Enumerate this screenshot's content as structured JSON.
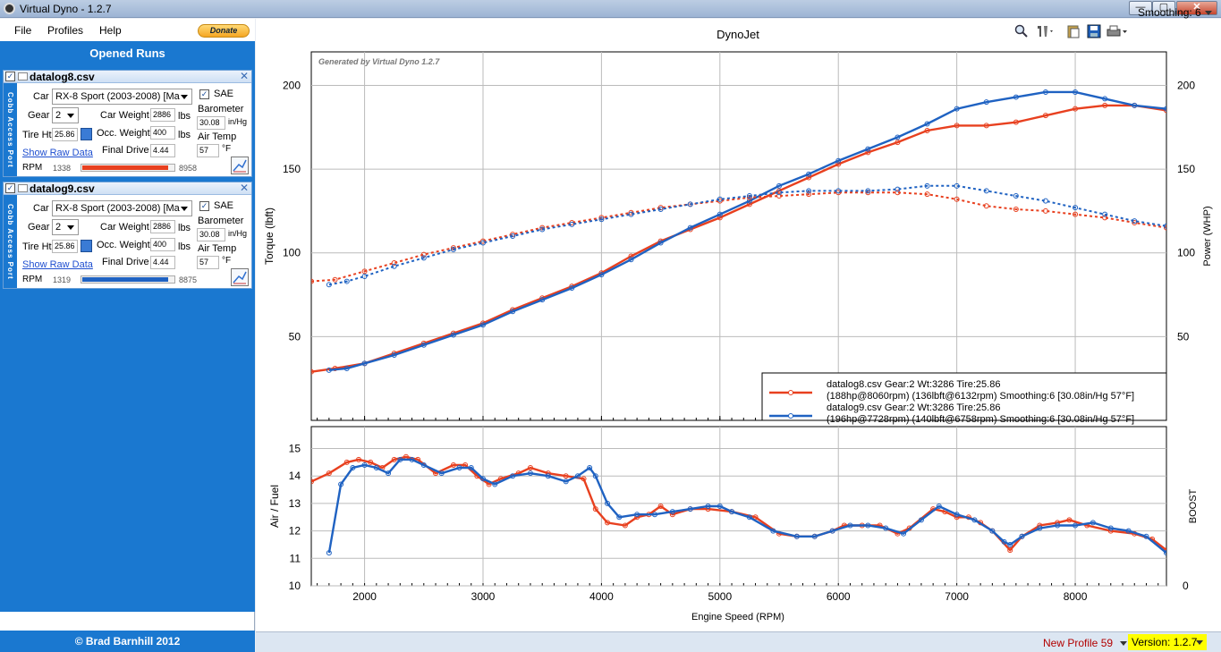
{
  "window": {
    "title": "Virtual Dyno - 1.2.7",
    "min": "—",
    "max": "▢",
    "close": "✕"
  },
  "menu": {
    "file": "File",
    "profiles": "Profiles",
    "help": "Help",
    "donate": "Donate"
  },
  "sidebar": {
    "header": "Opened Runs",
    "side_label": "Cobb Access Port",
    "runs": [
      {
        "filename": "datalog8.csv",
        "checked": true,
        "car": "RX-8 Sport (2003-2008) [Ma",
        "sae": "SAE",
        "sae_checked": true,
        "gear": "2",
        "car_weight_label": "Car Weight",
        "car_weight": "2886",
        "lbs": "lbs",
        "barometer_label": "Barometer",
        "barometer": "30.08",
        "baro_unit": "in/Hg",
        "tire_label": "Tire Ht",
        "tire": "25.86",
        "occ_weight_label": "Occ. Weight",
        "occ_weight": "400",
        "air_temp_label": "Air Temp",
        "air_temp": "57",
        "temp_unit": "°F",
        "raw_link": "Show Raw Data",
        "final_drive_label": "Final Drive",
        "final_drive": "4.44",
        "rpm_label": "RPM",
        "rpm_min": "1338",
        "rpm_max": "8958",
        "color": "#e8401f"
      },
      {
        "filename": "datalog9.csv",
        "checked": true,
        "car": "RX-8 Sport (2003-2008) [Ma",
        "sae": "SAE",
        "sae_checked": true,
        "gear": "2",
        "car_weight_label": "Car Weight",
        "car_weight": "2886",
        "lbs": "lbs",
        "barometer_label": "Barometer",
        "barometer": "30.08",
        "baro_unit": "in/Hg",
        "tire_label": "Tire Ht",
        "tire": "25.86",
        "occ_weight_label": "Occ. Weight",
        "occ_weight": "400",
        "air_temp_label": "Air Temp",
        "air_temp": "57",
        "temp_unit": "°F",
        "raw_link": "Show Raw Data",
        "final_drive_label": "Final Drive",
        "final_drive": "4.44",
        "rpm_label": "RPM",
        "rpm_min": "1319",
        "rpm_max": "8875",
        "color": "#1f62c2"
      }
    ],
    "car_label": "Car",
    "gear_label": "Gear",
    "copyright": "© Brad Barnhill 2012"
  },
  "toolbar": {
    "smoothing": "Smoothing: 6"
  },
  "status": {
    "profile": "New Profile 59",
    "version": "Version: 1.2.7"
  },
  "chart_data": [
    {
      "type": "line",
      "title": "DynoJet",
      "watermark": "Generated by Virtual Dyno 1.2.7",
      "xlabel": "Engine Speed (RPM)",
      "ylabel": "Torque (lbft)",
      "y2label": "Power (WHP)",
      "xlim": [
        1550,
        8770
      ],
      "ylim": [
        0,
        220
      ],
      "xticks": [
        2000,
        3000,
        4000,
        5000,
        6000,
        7000,
        8000
      ],
      "yticks": [
        50,
        100,
        150,
        200
      ],
      "grid": true,
      "legend_position": "bottom-right",
      "legend": [
        {
          "line1": "datalog8.csv Gear:2 Wt:3286 Tire:25.86",
          "line2": "(188hp@8060rpm) (136lbft@6132rpm) Smoothing:6 [30.08in/Hg 57°F]",
          "color": "#e8401f"
        },
        {
          "line1": "datalog9.csv Gear:2 Wt:3286 Tire:25.86",
          "line2": "(196hp@7728rpm) (140lbft@6758rpm) Smoothing:6 [30.08in/Hg 57°F]",
          "color": "#1f62c2"
        }
      ],
      "series": [
        {
          "name": "datalog8.csv power",
          "color": "#e8401f",
          "dash": false,
          "x": [
            1550,
            1750,
            2000,
            2250,
            2500,
            2750,
            3000,
            3250,
            3500,
            3750,
            4000,
            4250,
            4500,
            4750,
            5000,
            5250,
            5500,
            5750,
            6000,
            6250,
            6500,
            6750,
            7000,
            7250,
            7500,
            7750,
            8000,
            8250,
            8500,
            8770
          ],
          "y": [
            29,
            31,
            34,
            40,
            46,
            52,
            58,
            66,
            73,
            80,
            88,
            98,
            107,
            114,
            121,
            129,
            137,
            145,
            153,
            160,
            166,
            173,
            176,
            176,
            178,
            182,
            186,
            188,
            188,
            185
          ]
        },
        {
          "name": "datalog9.csv power",
          "color": "#1f62c2",
          "dash": false,
          "x": [
            1700,
            1850,
            2000,
            2250,
            2500,
            2750,
            3000,
            3250,
            3500,
            3750,
            4000,
            4250,
            4500,
            4750,
            5000,
            5250,
            5500,
            5750,
            6000,
            6250,
            6500,
            6750,
            7000,
            7250,
            7500,
            7750,
            8000,
            8250,
            8500,
            8770
          ],
          "y": [
            30,
            31,
            34,
            39,
            45,
            51,
            57,
            65,
            72,
            79,
            87,
            96,
            106,
            115,
            123,
            131,
            140,
            147,
            155,
            162,
            169,
            177,
            186,
            190,
            193,
            196,
            196,
            192,
            188,
            186
          ]
        },
        {
          "name": "datalog8.csv torque",
          "color": "#e8401f",
          "dash": true,
          "x": [
            1550,
            1750,
            2000,
            2250,
            2500,
            2750,
            3000,
            3250,
            3500,
            3750,
            4000,
            4250,
            4500,
            4750,
            5000,
            5250,
            5500,
            5750,
            6000,
            6250,
            6500,
            6750,
            7000,
            7250,
            7500,
            7750,
            8000,
            8250,
            8500,
            8770
          ],
          "y": [
            83,
            84,
            89,
            94,
            99,
            103,
            107,
            111,
            115,
            118,
            121,
            124,
            127,
            129,
            131,
            133,
            134,
            135,
            136,
            136,
            136,
            135,
            132,
            128,
            126,
            125,
            123,
            121,
            118,
            115
          ]
        },
        {
          "name": "datalog9.csv torque",
          "color": "#1f62c2",
          "dash": true,
          "x": [
            1700,
            1850,
            2000,
            2250,
            2500,
            2750,
            3000,
            3250,
            3500,
            3750,
            4000,
            4250,
            4500,
            4750,
            5000,
            5250,
            5500,
            5750,
            6000,
            6250,
            6500,
            6750,
            7000,
            7250,
            7500,
            7750,
            8000,
            8250,
            8500,
            8770
          ],
          "y": [
            81,
            83,
            86,
            92,
            97,
            102,
            106,
            110,
            114,
            117,
            120,
            123,
            126,
            129,
            132,
            134,
            136,
            137,
            137,
            137,
            138,
            140,
            140,
            137,
            134,
            131,
            127,
            123,
            119,
            116
          ]
        }
      ]
    },
    {
      "type": "line",
      "ylabel": "Air / Fuel",
      "y2label": "BOOST",
      "xlim": [
        1550,
        8770
      ],
      "ylim": [
        10,
        15.8
      ],
      "yticks": [
        10,
        11,
        12,
        13,
        14,
        15
      ],
      "y2ticks": [
        "0"
      ],
      "grid": true,
      "series": [
        {
          "name": "datalog8.csv AFR",
          "color": "#e8401f",
          "x": [
            1550,
            1700,
            1850,
            1950,
            2050,
            2150,
            2250,
            2350,
            2450,
            2600,
            2750,
            2850,
            2950,
            3050,
            3150,
            3300,
            3400,
            3550,
            3700,
            3850,
            3950,
            4050,
            4200,
            4300,
            4400,
            4500,
            4600,
            4750,
            4900,
            5100,
            5300,
            5500,
            5650,
            5800,
            5950,
            6050,
            6200,
            6350,
            6500,
            6600,
            6800,
            6900,
            7000,
            7100,
            7200,
            7300,
            7450,
            7550,
            7700,
            7850,
            7950,
            8100,
            8300,
            8500,
            8650,
            8770
          ],
          "y": [
            13.8,
            14.1,
            14.5,
            14.6,
            14.5,
            14.3,
            14.6,
            14.7,
            14.6,
            14.1,
            14.4,
            14.4,
            14.0,
            13.7,
            13.9,
            14.1,
            14.3,
            14.1,
            14.0,
            13.9,
            12.8,
            12.3,
            12.2,
            12.5,
            12.6,
            12.9,
            12.6,
            12.8,
            12.8,
            12.7,
            12.5,
            11.9,
            11.8,
            11.8,
            12.0,
            12.2,
            12.2,
            12.2,
            11.9,
            12.1,
            12.8,
            12.7,
            12.5,
            12.5,
            12.3,
            12.0,
            11.3,
            11.8,
            12.2,
            12.3,
            12.4,
            12.2,
            12.0,
            11.9,
            11.7,
            11.3
          ]
        },
        {
          "name": "datalog9.csv AFR",
          "color": "#1f62c2",
          "x": [
            1700,
            1800,
            1900,
            2000,
            2100,
            2200,
            2300,
            2400,
            2500,
            2650,
            2800,
            2900,
            3000,
            3100,
            3250,
            3400,
            3550,
            3700,
            3800,
            3900,
            3950,
            4050,
            4150,
            4300,
            4450,
            4600,
            4750,
            4900,
            5000,
            5100,
            5250,
            5450,
            5650,
            5800,
            5950,
            6100,
            6250,
            6400,
            6550,
            6700,
            6850,
            7000,
            7150,
            7300,
            7400,
            7450,
            7550,
            7700,
            7850,
            8000,
            8150,
            8300,
            8450,
            8600,
            8770
          ],
          "y": [
            11.2,
            13.7,
            14.3,
            14.4,
            14.3,
            14.1,
            14.6,
            14.6,
            14.4,
            14.1,
            14.3,
            14.3,
            13.9,
            13.7,
            14.0,
            14.1,
            14.0,
            13.8,
            14.0,
            14.3,
            14.0,
            13.0,
            12.5,
            12.6,
            12.6,
            12.7,
            12.8,
            12.9,
            12.9,
            12.7,
            12.5,
            12.0,
            11.8,
            11.8,
            12.0,
            12.2,
            12.2,
            12.1,
            11.9,
            12.4,
            12.9,
            12.6,
            12.4,
            12.0,
            11.6,
            11.5,
            11.8,
            12.1,
            12.2,
            12.2,
            12.3,
            12.1,
            12.0,
            11.8,
            11.2
          ]
        }
      ]
    }
  ]
}
